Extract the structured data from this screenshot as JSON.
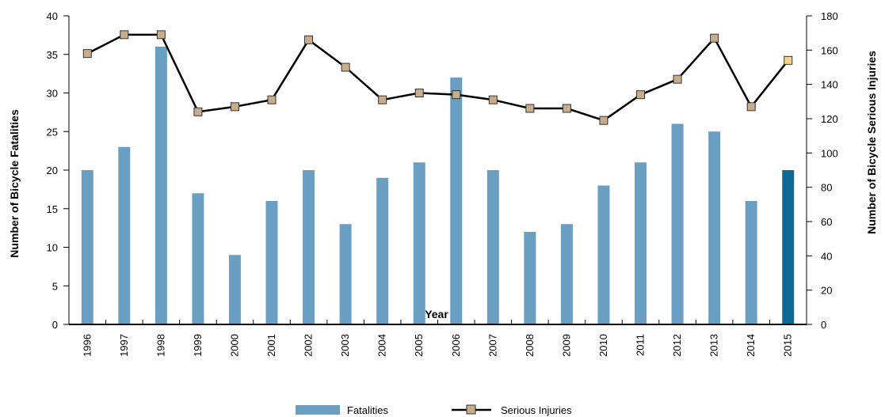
{
  "chart_data": {
    "type": "bar+line",
    "categories": [
      "1996",
      "1997",
      "1998",
      "1999",
      "2000",
      "2001",
      "2002",
      "2003",
      "2004",
      "2005",
      "2006",
      "2007",
      "2008",
      "2009",
      "2010",
      "2011",
      "2012",
      "2013",
      "2014",
      "2015"
    ],
    "series": [
      {
        "name": "Fatalities",
        "type": "bar",
        "axis": "left",
        "color": "#6a9ec2",
        "highlight_last_color": "#0e6a94",
        "values": [
          20,
          23,
          36,
          17,
          9,
          16,
          20,
          13,
          19,
          21,
          32,
          20,
          12,
          13,
          18,
          21,
          26,
          25,
          16,
          20
        ]
      },
      {
        "name": "Serious Injuries",
        "type": "line",
        "axis": "right",
        "line_color": "#000000",
        "marker_color": "#c8ad8c",
        "highlight_last_marker_color": "#f7d48e",
        "values": [
          158,
          169,
          169,
          124,
          127,
          131,
          166,
          150,
          131,
          135,
          134,
          131,
          126,
          126,
          119,
          134,
          143,
          167,
          127,
          154
        ]
      }
    ],
    "xlabel": "Year",
    "ylabel_left": "Number of Bicycle Fatalities",
    "ylabel_right": "Number of Bicycle Serious Injuries",
    "ylim_left": [
      0,
      40
    ],
    "yticks_left": [
      0,
      5,
      10,
      15,
      20,
      25,
      30,
      35,
      40
    ],
    "ylim_right": [
      0,
      180
    ],
    "yticks_right": [
      0,
      20,
      40,
      60,
      80,
      100,
      120,
      140,
      160,
      180
    ],
    "grid": false,
    "legend_position": "bottom-center"
  }
}
